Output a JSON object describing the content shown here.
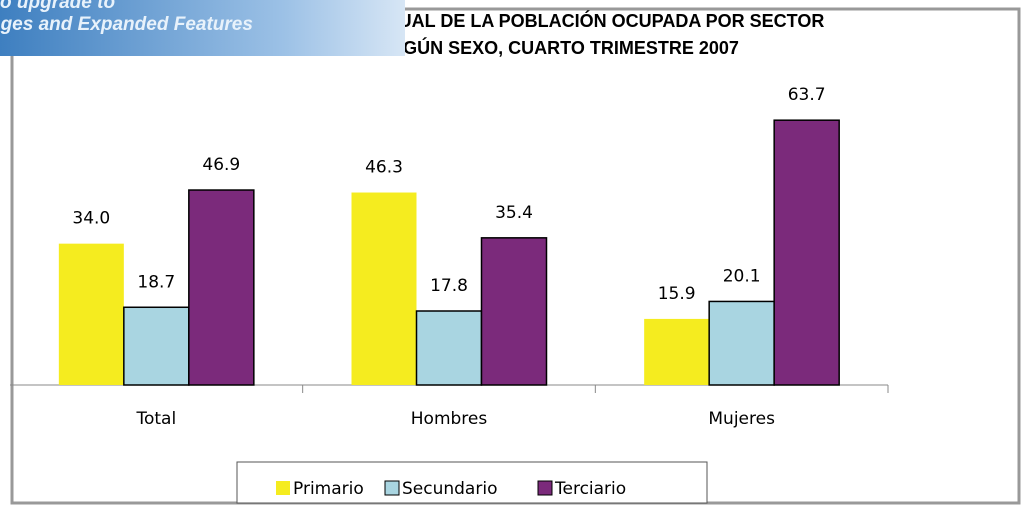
{
  "chart_data": {
    "type": "bar",
    "title": "DISTRIBUCIÓN PORCENTUAL DE LA POBLACIÓN OCUPADA POR SECTOR ECONÓMICO SEGÚN SEXO, CUARTO TRIMESTRE 2007",
    "watermark": [
      "o upgrade to",
      "ages and Expanded Features"
    ],
    "categories": [
      "Total",
      "Hombres",
      "Mujeres"
    ],
    "series": [
      {
        "name": "Primario",
        "color": "#f5ec1f",
        "values": [
          34,
          46.3,
          15.9
        ],
        "value_labels": [
          "34.0",
          "46.3",
          "15.9"
        ]
      },
      {
        "name": "Secundario",
        "color": "#a9d5e1",
        "values": [
          18.7,
          17.8,
          20.1
        ],
        "value_labels": [
          "18.7",
          "17.8",
          "20.1"
        ]
      },
      {
        "name": "Terciario",
        "color": "#7b2a7b",
        "values": [
          46.9,
          35.4,
          63.7
        ],
        "value_labels": [
          "46.9",
          "35.4",
          "63.7"
        ]
      }
    ],
    "ylim": [
      0,
      70
    ],
    "legend": "bottom"
  }
}
